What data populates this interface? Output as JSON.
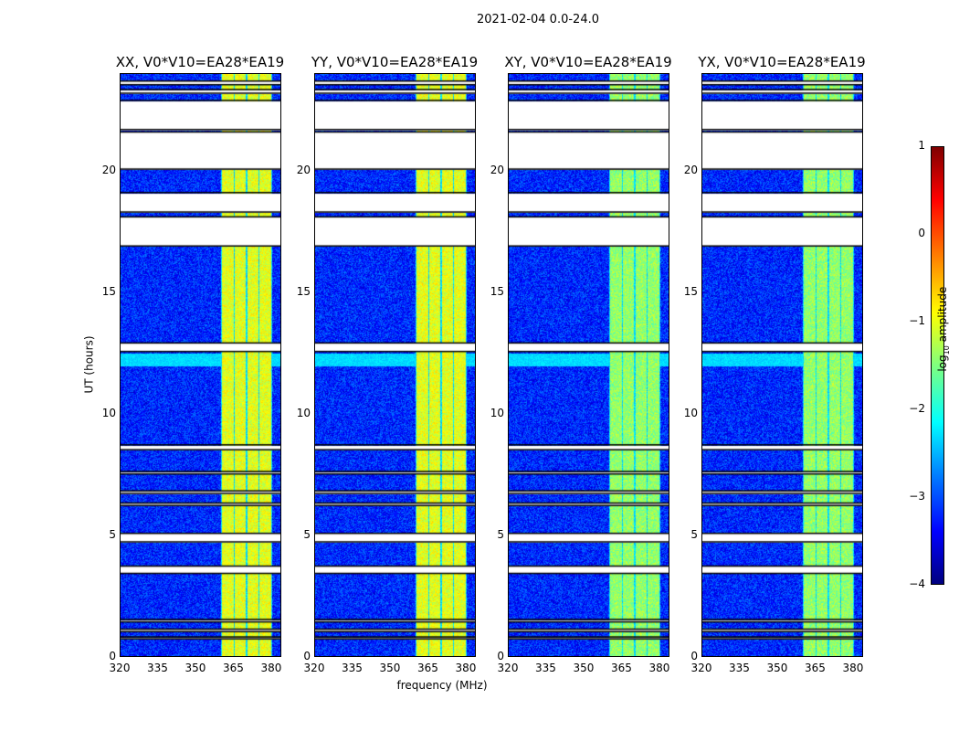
{
  "chart_data": {
    "type": "heatmap",
    "title": "2021-02-04 0.0-24.0",
    "xlabel": "frequency (MHz)",
    "ylabel": "UT (hours)",
    "xlim": [
      320,
      384
    ],
    "ylim": [
      0,
      24
    ],
    "xticks": [
      "320",
      "335",
      "350",
      "365",
      "380"
    ],
    "yticks": [
      "0",
      "5",
      "10",
      "15",
      "20"
    ],
    "panels": [
      {
        "title": "XX, V0*V10=EA28*EA19"
      },
      {
        "title": "YY, V0*V10=EA28*EA19"
      },
      {
        "title": "XY, V0*V10=EA28*EA19"
      },
      {
        "title": "YX, V0*V10=EA28*EA19"
      }
    ],
    "background_log_amplitude": -3.2,
    "bright_band_mhz": [
      [
        360.5,
        365
      ],
      [
        365.5,
        370
      ],
      [
        370.5,
        375
      ],
      [
        375.5,
        380
      ]
    ],
    "bright_band_log_amplitude": -1.0,
    "blank_intervals_hours": [
      [
        23.55,
        23.7
      ],
      [
        23.2,
        23.35
      ],
      [
        21.7,
        22.9
      ],
      [
        20.07,
        21.6
      ],
      [
        18.3,
        19.1
      ],
      [
        16.9,
        18.1
      ],
      [
        12.55,
        12.9
      ],
      [
        8.5,
        8.7
      ],
      [
        4.7,
        5.05
      ],
      [
        3.4,
        3.7
      ],
      [
        7.5,
        7.6
      ],
      [
        6.7,
        6.8
      ],
      [
        6.2,
        6.3
      ],
      [
        1.0,
        1.1
      ],
      [
        1.4,
        1.5
      ],
      [
        0.7,
        0.78
      ]
    ],
    "colorbar": {
      "label": "log10 amplitude",
      "label_main": "log",
      "label_sub": "10",
      "label_rest": " amplitude",
      "ticks": [
        "1",
        "0",
        "−1",
        "−2",
        "−3",
        "−4"
      ],
      "range": [
        -4,
        1
      ],
      "colormap": "jet"
    }
  }
}
